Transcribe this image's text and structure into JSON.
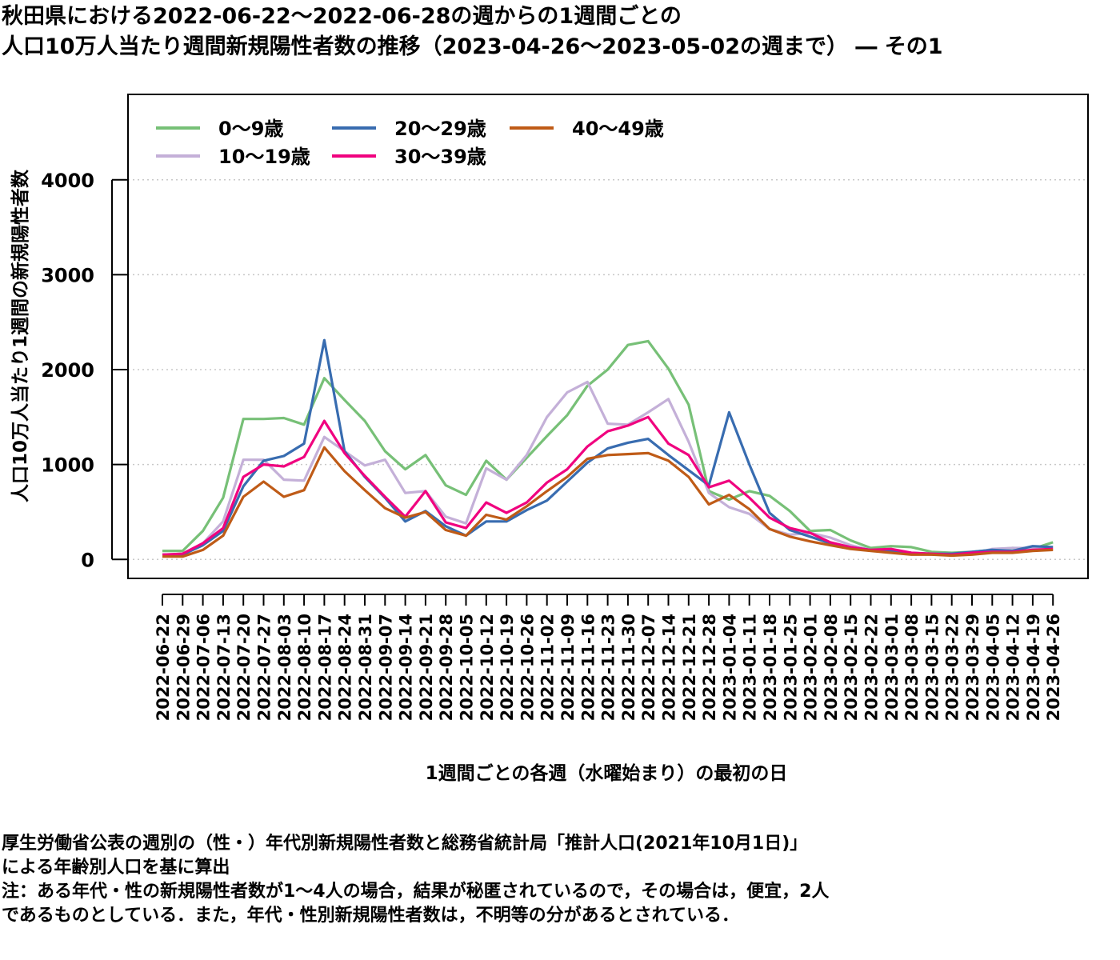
{
  "title_lines": [
    "秋田県における2022-06-22〜2022-06-28の週からの1週間ごとの",
    "人口10万人当たり週間新規陽性者数の推移（2023-04-26〜2023-05-02の週まで） ― その1"
  ],
  "note_lines": [
    "厚生労働省公表の週別の（性・）年代別新規陽性者数と総務省統計局「推計人口(2021年10月1日)」",
    "による年齢別人口を基に算出",
    "注：ある年代・性の新規陽性者数が1〜4人の場合，結果が秘匿されているので，その場合は，便宜，2人",
    "であるものとしている．また，年代・性別新規陽性者数は，不明等の分があるとされている．"
  ],
  "chart_data": {
    "type": "line",
    "xlabel": "1週間ごとの各週（水曜始まり）の最初の日",
    "ylabel": "人口10万人当たり1週間の新規陽性者数",
    "ylim": [
      -200,
      4900
    ],
    "yticks": [
      0,
      1000,
      2000,
      3000,
      4000
    ],
    "grid": true,
    "legend_position": "top-left",
    "x": [
      "2022-06-22",
      "2022-06-29",
      "2022-07-06",
      "2022-07-13",
      "2022-07-20",
      "2022-07-27",
      "2022-08-03",
      "2022-08-10",
      "2022-08-17",
      "2022-08-24",
      "2022-08-31",
      "2022-09-07",
      "2022-09-14",
      "2022-09-21",
      "2022-09-28",
      "2022-10-05",
      "2022-10-12",
      "2022-10-19",
      "2022-10-26",
      "2022-11-02",
      "2022-11-09",
      "2022-11-16",
      "2022-11-23",
      "2022-11-30",
      "2022-12-07",
      "2022-12-14",
      "2022-12-21",
      "2022-12-28",
      "2023-01-04",
      "2023-01-11",
      "2023-01-18",
      "2023-01-25",
      "2023-02-01",
      "2023-02-08",
      "2023-02-15",
      "2023-02-22",
      "2023-03-01",
      "2023-03-08",
      "2023-03-15",
      "2023-03-22",
      "2023-03-29",
      "2023-04-05",
      "2023-04-12",
      "2023-04-19",
      "2023-04-26"
    ],
    "series": [
      {
        "name": "0〜9歳",
        "color": "#77c077",
        "values": [
          90,
          90,
          300,
          650,
          1480,
          1480,
          1490,
          1420,
          1910,
          1680,
          1460,
          1140,
          950,
          1100,
          780,
          680,
          1040,
          840,
          1070,
          1300,
          1520,
          1830,
          2000,
          2260,
          2300,
          2010,
          1630,
          720,
          630,
          720,
          670,
          510,
          300,
          310,
          200,
          120,
          140,
          130,
          80,
          70,
          80,
          100,
          120,
          110,
          180
        ]
      },
      {
        "name": "10〜19歳",
        "color": "#c4b0d8",
        "values": [
          50,
          60,
          170,
          400,
          1050,
          1050,
          840,
          830,
          1290,
          1140,
          990,
          1050,
          700,
          720,
          450,
          380,
          960,
          840,
          1100,
          1500,
          1760,
          1870,
          1430,
          1420,
          1550,
          1690,
          1240,
          700,
          550,
          480,
          320,
          260,
          280,
          230,
          150,
          100,
          90,
          60,
          50,
          50,
          60,
          110,
          120,
          120,
          130
        ]
      },
      {
        "name": "20〜29歳",
        "color": "#386cb0",
        "values": [
          50,
          50,
          150,
          300,
          770,
          1040,
          1090,
          1220,
          2310,
          1140,
          870,
          650,
          400,
          510,
          350,
          250,
          400,
          400,
          520,
          620,
          820,
          1020,
          1170,
          1230,
          1270,
          1100,
          940,
          780,
          1550,
          1000,
          490,
          310,
          240,
          170,
          130,
          100,
          90,
          70,
          60,
          60,
          80,
          100,
          90,
          140,
          130
        ]
      },
      {
        "name": "30〜39歳",
        "color": "#f0027f",
        "values": [
          50,
          60,
          170,
          330,
          870,
          1000,
          980,
          1080,
          1460,
          1120,
          880,
          660,
          450,
          720,
          390,
          330,
          600,
          490,
          600,
          810,
          950,
          1190,
          1350,
          1410,
          1500,
          1220,
          1100,
          760,
          830,
          650,
          440,
          330,
          280,
          180,
          130,
          100,
          110,
          70,
          60,
          50,
          70,
          80,
          80,
          100,
          110
        ]
      },
      {
        "name": "40〜49歳",
        "color": "#bf5b17",
        "values": [
          30,
          30,
          100,
          250,
          660,
          820,
          660,
          730,
          1180,
          930,
          730,
          540,
          440,
          500,
          310,
          250,
          470,
          420,
          560,
          720,
          870,
          1060,
          1100,
          1110,
          1120,
          1040,
          870,
          580,
          680,
          530,
          320,
          240,
          190,
          150,
          110,
          90,
          70,
          50,
          50,
          40,
          50,
          70,
          70,
          90,
          100
        ]
      }
    ]
  }
}
